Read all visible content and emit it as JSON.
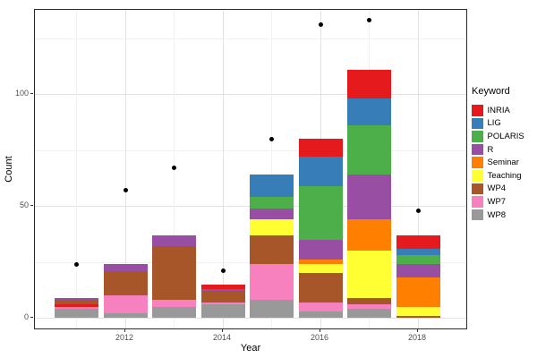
{
  "chart_data": {
    "type": "bar",
    "stacked": true,
    "title": "",
    "xlabel": "Year",
    "ylabel": "Count",
    "legend_title": "Keyword",
    "legend_position": "right",
    "grid": true,
    "x_years": [
      2011,
      2012,
      2013,
      2014,
      2015,
      2016,
      2017,
      2018
    ],
    "x_axis_tick_labels": [
      "2012",
      "2014",
      "2016",
      "2018"
    ],
    "x_labeled_years": [
      2012,
      2014,
      2016,
      2018
    ],
    "y_axis_ticks": [
      0,
      50,
      100
    ],
    "y_minor_gridlines": [
      25,
      75,
      125
    ],
    "ylim": [
      0,
      138
    ],
    "point_color": "#000000",
    "keywords": [
      {
        "name": "INRIA",
        "color": "#E41A1C"
      },
      {
        "name": "LIG",
        "color": "#377EB8"
      },
      {
        "name": "POLARIS",
        "color": "#4DAF4A"
      },
      {
        "name": "R",
        "color": "#984EA3"
      },
      {
        "name": "Seminar",
        "color": "#FF7F00"
      },
      {
        "name": "Teaching",
        "color": "#FFFF33"
      },
      {
        "name": "WP4",
        "color": "#A65628"
      },
      {
        "name": "WP7",
        "color": "#F781BF"
      },
      {
        "name": "WP8",
        "color": "#999999"
      }
    ],
    "bars": [
      {
        "year": 2011,
        "total": 9,
        "segments": [
          {
            "keyword": "WP8",
            "value": 4
          },
          {
            "keyword": "WP7",
            "value": 1
          },
          {
            "keyword": "INRIA",
            "value": 1
          },
          {
            "keyword": "WP4",
            "value": 2
          },
          {
            "keyword": "R",
            "value": 1
          }
        ]
      },
      {
        "year": 2012,
        "total": 24,
        "segments": [
          {
            "keyword": "WP8",
            "value": 2
          },
          {
            "keyword": "WP7",
            "value": 8
          },
          {
            "keyword": "WP4",
            "value": 11
          },
          {
            "keyword": "R",
            "value": 3
          }
        ]
      },
      {
        "year": 2013,
        "total": 37,
        "segments": [
          {
            "keyword": "WP8",
            "value": 5
          },
          {
            "keyword": "WP7",
            "value": 3
          },
          {
            "keyword": "WP4",
            "value": 24
          },
          {
            "keyword": "R",
            "value": 5
          }
        ]
      },
      {
        "year": 2014,
        "total": 15,
        "segments": [
          {
            "keyword": "WP8",
            "value": 6
          },
          {
            "keyword": "WP7",
            "value": 1
          },
          {
            "keyword": "WP4",
            "value": 5
          },
          {
            "keyword": "R",
            "value": 1
          },
          {
            "keyword": "INRIA",
            "value": 2
          }
        ]
      },
      {
        "year": 2015,
        "total": 64,
        "segments": [
          {
            "keyword": "WP8",
            "value": 8
          },
          {
            "keyword": "WP7",
            "value": 16
          },
          {
            "keyword": "WP4",
            "value": 13
          },
          {
            "keyword": "Teaching",
            "value": 7
          },
          {
            "keyword": "R",
            "value": 5
          },
          {
            "keyword": "POLARIS",
            "value": 5
          },
          {
            "keyword": "LIG",
            "value": 10
          }
        ]
      },
      {
        "year": 2016,
        "total": 80,
        "segments": [
          {
            "keyword": "WP8",
            "value": 3
          },
          {
            "keyword": "WP7",
            "value": 4
          },
          {
            "keyword": "WP4",
            "value": 13
          },
          {
            "keyword": "Teaching",
            "value": 4
          },
          {
            "keyword": "Seminar",
            "value": 2
          },
          {
            "keyword": "R",
            "value": 9
          },
          {
            "keyword": "POLARIS",
            "value": 24
          },
          {
            "keyword": "LIG",
            "value": 13
          },
          {
            "keyword": "INRIA",
            "value": 8
          }
        ]
      },
      {
        "year": 2017,
        "total": 111,
        "segments": [
          {
            "keyword": "WP8",
            "value": 4
          },
          {
            "keyword": "WP7",
            "value": 2
          },
          {
            "keyword": "WP4",
            "value": 3
          },
          {
            "keyword": "Teaching",
            "value": 21
          },
          {
            "keyword": "Seminar",
            "value": 14
          },
          {
            "keyword": "R",
            "value": 20
          },
          {
            "keyword": "POLARIS",
            "value": 22
          },
          {
            "keyword": "LIG",
            "value": 12
          },
          {
            "keyword": "INRIA",
            "value": 13
          }
        ]
      },
      {
        "year": 2018,
        "total": 37,
        "segments": [
          {
            "keyword": "WP4",
            "value": 1
          },
          {
            "keyword": "Teaching",
            "value": 4
          },
          {
            "keyword": "Seminar",
            "value": 13
          },
          {
            "keyword": "R",
            "value": 6
          },
          {
            "keyword": "POLARIS",
            "value": 4
          },
          {
            "keyword": "LIG",
            "value": 3
          },
          {
            "keyword": "INRIA",
            "value": 6
          }
        ]
      }
    ],
    "points": [
      {
        "year": 2011,
        "value": 24
      },
      {
        "year": 2012,
        "value": 57
      },
      {
        "year": 2013,
        "value": 67
      },
      {
        "year": 2014,
        "value": 21
      },
      {
        "year": 2015,
        "value": 80
      },
      {
        "year": 2016,
        "value": 131
      },
      {
        "year": 2017,
        "value": 133
      },
      {
        "year": 2018,
        "value": 48
      }
    ]
  }
}
